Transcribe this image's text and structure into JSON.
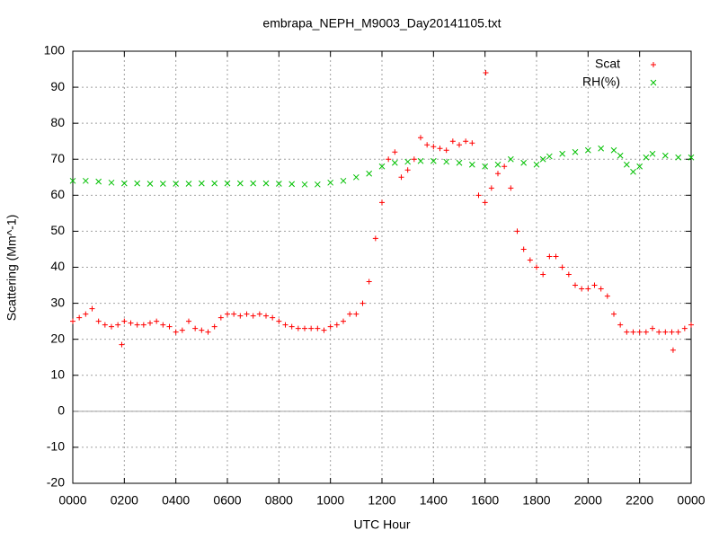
{
  "chart_data": {
    "type": "scatter",
    "title": "embrapa_NEPH_M9003_Day20141105.txt",
    "x_label": "UTC Hour",
    "y_label": "Scattering (Mm^-1)",
    "xlim": [
      0,
      24
    ],
    "xticks": [
      {
        "value": 0,
        "label": "0000"
      },
      {
        "value": 2,
        "label": "0200"
      },
      {
        "value": 4,
        "label": "0400"
      },
      {
        "value": 6,
        "label": "0600"
      },
      {
        "value": 8,
        "label": "0800"
      },
      {
        "value": 10,
        "label": "1000"
      },
      {
        "value": 12,
        "label": "1200"
      },
      {
        "value": 14,
        "label": "1400"
      },
      {
        "value": 16,
        "label": "1600"
      },
      {
        "value": 18,
        "label": "1800"
      },
      {
        "value": 20,
        "label": "2000"
      },
      {
        "value": 22,
        "label": "2200"
      },
      {
        "value": 24,
        "label": "0000"
      }
    ],
    "ylim": [
      -20,
      100
    ],
    "yticks": [
      -20,
      -10,
      0,
      10,
      20,
      30,
      40,
      50,
      60,
      70,
      80,
      90,
      100
    ],
    "grid": true,
    "legend": "top-right",
    "series": [
      {
        "name": "Scat",
        "color": "#ff0000",
        "marker": "plus",
        "x": [
          0,
          0.25,
          0.5,
          0.75,
          1.0,
          1.25,
          1.5,
          1.75,
          1.9,
          2.0,
          2.25,
          2.5,
          2.75,
          3.0,
          3.25,
          3.5,
          3.75,
          4.0,
          4.25,
          4.5,
          4.75,
          5.0,
          5.25,
          5.5,
          5.75,
          6.0,
          6.25,
          6.5,
          6.75,
          7.0,
          7.25,
          7.5,
          7.75,
          8.0,
          8.25,
          8.5,
          8.75,
          9.0,
          9.25,
          9.5,
          9.75,
          10.0,
          10.25,
          10.5,
          10.75,
          11.0,
          11.25,
          11.5,
          11.75,
          12.0,
          12.25,
          12.5,
          12.75,
          13.0,
          13.25,
          13.5,
          13.75,
          14.0,
          14.25,
          14.5,
          14.75,
          15.0,
          15.25,
          15.5,
          15.75,
          16.0,
          16.03,
          16.25,
          16.5,
          16.75,
          17.0,
          17.25,
          17.5,
          17.75,
          18.0,
          18.25,
          18.5,
          18.75,
          19.0,
          19.25,
          19.5,
          19.75,
          20.0,
          20.25,
          20.5,
          20.75,
          21.0,
          21.25,
          21.5,
          21.75,
          22.0,
          22.25,
          22.5,
          22.75,
          23.0,
          23.25,
          23.3,
          23.5,
          23.75,
          24.0
        ],
        "values": [
          25,
          26,
          27,
          28.5,
          25,
          24,
          23.5,
          24,
          18.5,
          25,
          24.5,
          24,
          24,
          24.5,
          25,
          24,
          23.5,
          22,
          22.5,
          25,
          23,
          22.5,
          22,
          23.5,
          26,
          27,
          27,
          26.5,
          27,
          26.5,
          27,
          26.5,
          26,
          25,
          24,
          23.5,
          23,
          23,
          23,
          23,
          22.5,
          23.5,
          24,
          25,
          27,
          27,
          30,
          36,
          48,
          58,
          70,
          72,
          65,
          67,
          70,
          76,
          74,
          73.5,
          73,
          72.5,
          75,
          74,
          75,
          74.5,
          60,
          58,
          94,
          62,
          66,
          68,
          62,
          50,
          45,
          42,
          40,
          38,
          43,
          43,
          40,
          38,
          35,
          34,
          34,
          35,
          34,
          32,
          27,
          24,
          22,
          22,
          22,
          22,
          23,
          22,
          22,
          22,
          17,
          22,
          23,
          24
        ]
      },
      {
        "name": "RH(%)",
        "color": "#00c000",
        "marker": "cross",
        "x": [
          0,
          0.5,
          1,
          1.5,
          2,
          2.5,
          3,
          3.5,
          4,
          4.5,
          5,
          5.5,
          6,
          6.5,
          7,
          7.5,
          8,
          8.5,
          9,
          9.5,
          10,
          10.5,
          11,
          11.5,
          12,
          12.5,
          13,
          13.5,
          14,
          14.5,
          15,
          15.5,
          16,
          16.5,
          17,
          17.5,
          18,
          18.25,
          18.5,
          19,
          19.5,
          20,
          20.5,
          21,
          21.25,
          21.5,
          21.75,
          22,
          22.25,
          22.5,
          23,
          23.5,
          24
        ],
        "values": [
          64,
          64,
          63.8,
          63.5,
          63.3,
          63.3,
          63.2,
          63.2,
          63.2,
          63.2,
          63.3,
          63.3,
          63.3,
          63.3,
          63.3,
          63.3,
          63.2,
          63.1,
          63,
          63,
          63.5,
          64,
          65,
          66,
          68,
          69,
          69.3,
          69.5,
          69.5,
          69.3,
          69,
          68.5,
          68,
          68.5,
          70,
          69,
          68.5,
          70,
          70.8,
          71.5,
          72,
          72.5,
          73,
          72.5,
          71,
          68.5,
          66.5,
          68,
          70.5,
          71.5,
          71,
          70.5,
          70.5
        ]
      }
    ]
  }
}
